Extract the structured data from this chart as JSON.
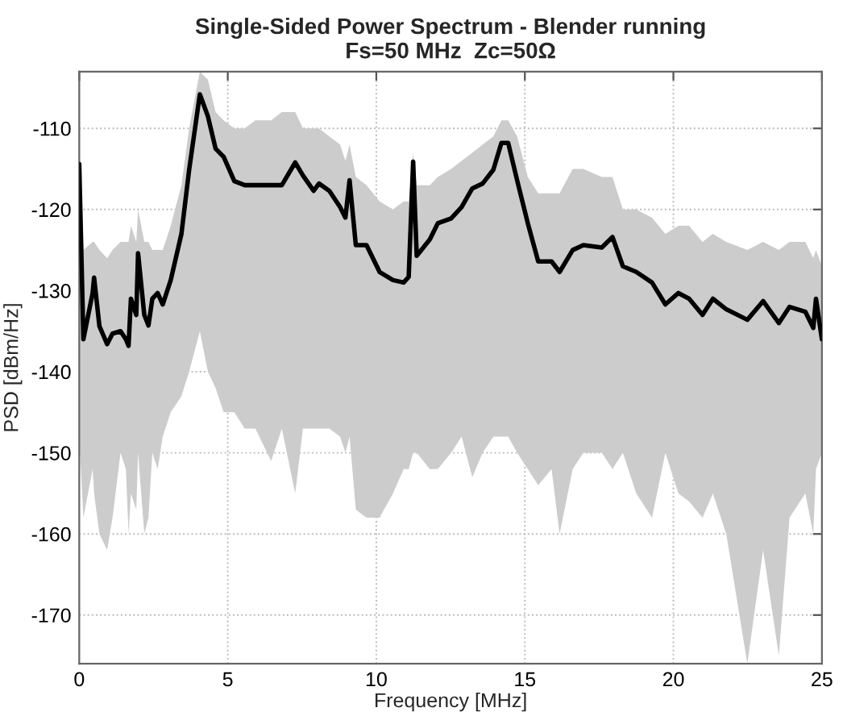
{
  "chart_data": {
    "type": "line",
    "title": "Single-Sided Power Spectrum - Blender running\nFs=50 MHz  Zc=50Ω",
    "xlabel": "Frequency [MHz]",
    "ylabel": "PSD [dBm/Hz]",
    "xlim": [
      0,
      25
    ],
    "ylim": [
      -176,
      -103
    ],
    "xticks": [
      0,
      5,
      10,
      15,
      20,
      25
    ],
    "yticks": [
      -170,
      -160,
      -150,
      -140,
      -130,
      -120,
      -110
    ],
    "grid": true,
    "series": [
      {
        "color": "#000000",
        "x": [
          0,
          0.14,
          0.45,
          0.5,
          0.68,
          0.94,
          1.12,
          1.39,
          1.57,
          1.66,
          1.74,
          1.92,
          1.98,
          2.19,
          2.33,
          2.46,
          2.64,
          2.81,
          3.08,
          3.44,
          3.7,
          4.06,
          4.33,
          4.59,
          4.86,
          5.22,
          5.57,
          5.93,
          6.46,
          6.82,
          7.27,
          7.53,
          7.89,
          8.07,
          8.42,
          8.78,
          8.96,
          9.1,
          9.31,
          9.67,
          10.11,
          10.56,
          10.92,
          11.09,
          11.24,
          11.36,
          11.8,
          12.07,
          12.52,
          12.87,
          13.23,
          13.58,
          13.94,
          14.21,
          14.44,
          14.74,
          15.1,
          15.45,
          15.9,
          16.17,
          16.61,
          16.97,
          17.59,
          17.95,
          18.3,
          18.75,
          19.28,
          19.73,
          20.17,
          20.53,
          20.98,
          21.33,
          21.78,
          22.49,
          23.02,
          23.55,
          23.91,
          24.44,
          24.71,
          24.8,
          25
        ],
        "values": [
          -114.4,
          -136,
          -130.3,
          -128.4,
          -134.4,
          -136.6,
          -135.3,
          -135,
          -136,
          -136.8,
          -131,
          -133,
          -125.4,
          -133,
          -134.3,
          -131,
          -130.3,
          -131.7,
          -128.7,
          -123,
          -115.1,
          -105.8,
          -108.5,
          -112.5,
          -113.5,
          -116.5,
          -117,
          -117,
          -117,
          -117,
          -114.2,
          -115.8,
          -117.7,
          -116.8,
          -117.7,
          -119.7,
          -121,
          -116.4,
          -124.4,
          -124.4,
          -127.7,
          -128.7,
          -129,
          -128.3,
          -114.1,
          -125.7,
          -123.7,
          -121.7,
          -121.1,
          -119.7,
          -117.4,
          -116.8,
          -115.1,
          -111.8,
          -111.8,
          -116.4,
          -121.7,
          -126.4,
          -126.4,
          -127.7,
          -125,
          -124.4,
          -124.7,
          -123.4,
          -127,
          -127.7,
          -129,
          -131.7,
          -130.3,
          -131,
          -133,
          -131,
          -132.3,
          -133.6,
          -131.3,
          -134,
          -132,
          -132.6,
          -134.6,
          -131,
          -136
        ],
        "lower": [
          -148,
          -158,
          -152,
          -155,
          -160,
          -162,
          -158,
          -150,
          -152,
          -160,
          -155,
          -157,
          -150,
          -160,
          -158,
          -150,
          -152,
          -148,
          -145,
          -143,
          -140,
          -135,
          -140,
          -142,
          -145,
          -145,
          -147,
          -147,
          -151,
          -147,
          -155,
          -147,
          -147,
          -147,
          -147,
          -148,
          -150,
          -148,
          -157,
          -158,
          -158,
          -155,
          -152,
          -152,
          -150,
          -150,
          -152,
          -152,
          -150,
          -148,
          -153,
          -150,
          -148,
          -148,
          -148,
          -150,
          -152,
          -154,
          -152,
          -160,
          -152,
          -150,
          -150,
          -152,
          -150,
          -155,
          -158,
          -150,
          -155,
          -156,
          -158,
          -155,
          -160,
          -176,
          -162,
          -175,
          -158,
          -155,
          -160,
          -152,
          -150
        ],
        "upper": [
          -112,
          -125,
          -124,
          -124,
          -125,
          -126,
          -125,
          -124,
          -124,
          -124,
          -122,
          -124,
          -120,
          -124,
          -124,
          -125,
          -125,
          -125,
          -122,
          -117,
          -110,
          -103,
          -104,
          -108,
          -109,
          -110,
          -110,
          -109,
          -109,
          -108,
          -108,
          -110,
          -110,
          -110,
          -111,
          -112,
          -114,
          -112,
          -116,
          -117,
          -119,
          -120,
          -119,
          -119,
          -113,
          -117,
          -117,
          -116,
          -115,
          -114,
          -113,
          -112,
          -111,
          -109,
          -109,
          -111,
          -116,
          -118,
          -118,
          -118,
          -115,
          -115,
          -116,
          -116,
          -120,
          -120,
          -121,
          -123,
          -122,
          -122,
          -124,
          -123,
          -124,
          -125,
          -124,
          -125,
          -124,
          -124,
          -126,
          -125,
          -127
        ]
      }
    ]
  }
}
